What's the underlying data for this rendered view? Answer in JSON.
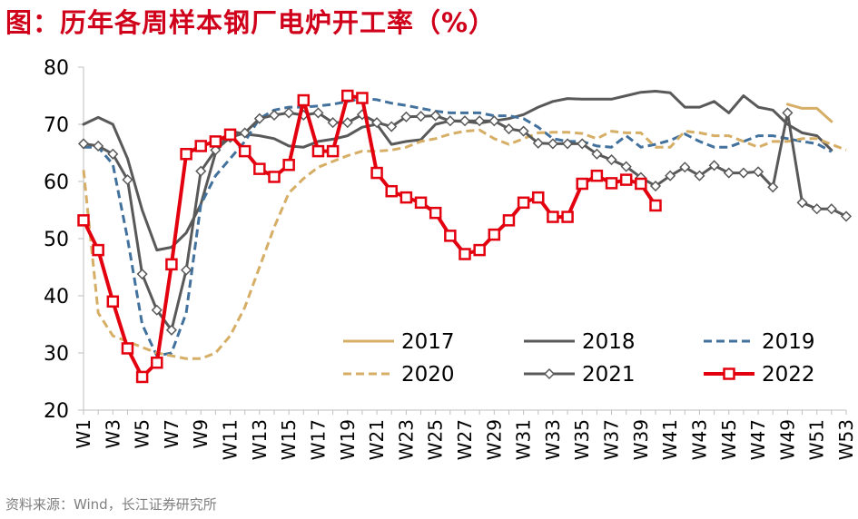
{
  "title": "图：历年各周样本钢厂电炉开工率（%）",
  "source": "资料来源：Wind，长江证券研究所",
  "chart_data": {
    "type": "line",
    "title": "历年各周样本钢厂电炉开工率（%）",
    "xlabel": "",
    "ylabel": "",
    "ylim": [
      20,
      80
    ],
    "yticks": [
      20,
      30,
      40,
      50,
      60,
      70,
      80
    ],
    "x_count": 53,
    "x_tick_labels": [
      "W1",
      "W3",
      "W5",
      "W7",
      "W9",
      "W11",
      "W13",
      "W15",
      "W17",
      "W19",
      "W21",
      "W23",
      "W25",
      "W27",
      "W29",
      "W31",
      "W33",
      "W35",
      "W37",
      "W39",
      "W41",
      "W43",
      "W45",
      "W47",
      "W49",
      "W51",
      "W53"
    ],
    "x_tick_weeks": [
      1,
      3,
      5,
      7,
      9,
      11,
      13,
      15,
      17,
      19,
      21,
      23,
      25,
      27,
      29,
      31,
      33,
      35,
      37,
      39,
      41,
      43,
      45,
      47,
      49,
      51,
      53
    ],
    "grid": false,
    "legend_position": "bottom-right",
    "series": [
      {
        "name": "2017",
        "color": "#d6ae66",
        "dash": "solid",
        "marker": "none",
        "width": 3,
        "values": [
          null,
          null,
          null,
          null,
          null,
          null,
          null,
          null,
          null,
          null,
          null,
          null,
          null,
          null,
          null,
          null,
          null,
          null,
          null,
          null,
          null,
          null,
          null,
          null,
          null,
          null,
          null,
          null,
          null,
          null,
          null,
          null,
          null,
          null,
          null,
          null,
          null,
          null,
          null,
          null,
          null,
          null,
          null,
          null,
          null,
          null,
          null,
          null,
          73.5,
          72.8,
          72.8,
          70.5,
          null
        ]
      },
      {
        "name": "2018",
        "color": "#595959",
        "dash": "solid",
        "marker": "none",
        "width": 3,
        "values": [
          70,
          71.2,
          70,
          64,
          55,
          48,
          48.5,
          51,
          56,
          65,
          68.8,
          68.3,
          68,
          67.5,
          66.2,
          66,
          67,
          67.4,
          68,
          69.5,
          70,
          66.5,
          67,
          67.3,
          70,
          70.6,
          70.5,
          70.2,
          70.6,
          71,
          71.7,
          73,
          74,
          74.5,
          74.4,
          74.4,
          74.4,
          75,
          75.6,
          75.8,
          75.5,
          73,
          73,
          74,
          72,
          75,
          73,
          72.5,
          70,
          68.5,
          68,
          65.5,
          null
        ]
      },
      {
        "name": "2019",
        "color": "#41719c",
        "dash": "dash",
        "marker": "none",
        "width": 3,
        "values": [
          66,
          66,
          63,
          50,
          35,
          29.5,
          30,
          37,
          56,
          61,
          64,
          67,
          71,
          72.5,
          73,
          73,
          73.2,
          73.5,
          74,
          74.5,
          74.3,
          73.7,
          73.3,
          72.8,
          72.3,
          72,
          72,
          72,
          71.5,
          71.5,
          71,
          69.5,
          67.5,
          67,
          67,
          66.2,
          66,
          68,
          66,
          66.5,
          67.2,
          68.3,
          67,
          66,
          66,
          67,
          68,
          68,
          67.5,
          67,
          66.6,
          65.2,
          null
        ]
      },
      {
        "name": "2020",
        "color": "#d6ae66",
        "dash": "dash",
        "marker": "none",
        "width": 3,
        "values": [
          62,
          37,
          33,
          32,
          31,
          30,
          29.5,
          29,
          29,
          30,
          33,
          38,
          45,
          52,
          58,
          60.5,
          62.5,
          63.5,
          64.5,
          65.3,
          65.3,
          65.5,
          66,
          67,
          67.5,
          68.3,
          68.8,
          69,
          67.5,
          66.5,
          67.5,
          68.5,
          68.6,
          68.6,
          68.4,
          67.5,
          68.8,
          68.5,
          68.5,
          66,
          66,
          68.8,
          68.5,
          68,
          68,
          67,
          66,
          67,
          67,
          67.5,
          67.5,
          66.5,
          65.5
        ]
      },
      {
        "name": "2021",
        "color": "#595959",
        "dash": "solid",
        "marker": "diamond",
        "width": 3,
        "values": [
          66.6,
          66.2,
          64.8,
          60.3,
          43.8,
          37.5,
          34,
          44.5,
          61.8,
          65.5,
          67.7,
          68.5,
          71,
          71.6,
          72,
          71.6,
          72,
          70.3,
          70.3,
          71.7,
          70.3,
          69.6,
          71.3,
          71.4,
          71.5,
          70.6,
          70.6,
          70.6,
          70.6,
          69.2,
          68.8,
          66.7,
          66.6,
          66.6,
          66.6,
          64.8,
          63.8,
          62.6,
          60.7,
          59.2,
          61,
          62.5,
          61,
          62.8,
          61.5,
          61.5,
          61.7,
          59,
          72,
          56.3,
          55.2,
          55.2,
          53.9
        ]
      },
      {
        "name": "2022",
        "color": "#e3000f",
        "dash": "solid",
        "marker": "square",
        "width": 4,
        "values": [
          53.2,
          48,
          39,
          30.8,
          25.8,
          28.3,
          45.5,
          64.8,
          66.2,
          67,
          68.2,
          65.3,
          62.2,
          60.8,
          62.9,
          74.2,
          65.3,
          65.3,
          75,
          74.6,
          61.5,
          58.3,
          57.2,
          56.3,
          54.5,
          50.5,
          47.3,
          48,
          50.7,
          53.2,
          56.3,
          57.2,
          53.8,
          53.8,
          59.6,
          61,
          59.7,
          60.3,
          59.6,
          55.8,
          null,
          null,
          null,
          null,
          null,
          null,
          null,
          null,
          null,
          null,
          null,
          null,
          null
        ]
      }
    ]
  }
}
